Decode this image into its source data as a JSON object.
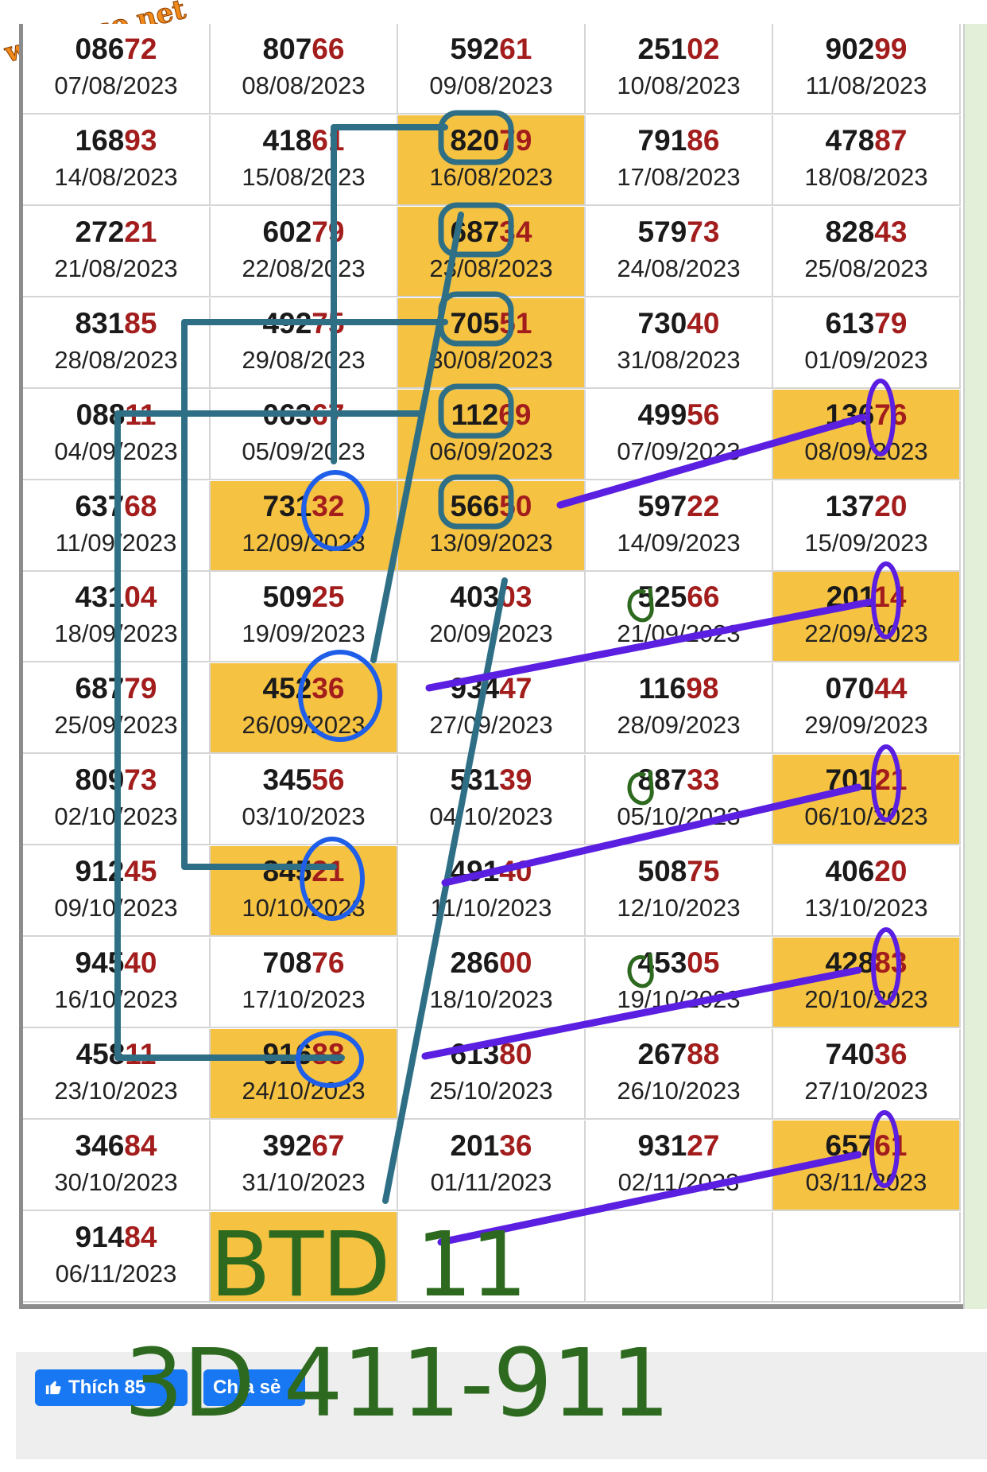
{
  "watermark": "webxoso.net",
  "rows": [
    [
      {
        "p": "086",
        "t": "72",
        "d": "07/08/2023"
      },
      {
        "p": "807",
        "t": "66",
        "d": "08/08/2023"
      },
      {
        "p": "592",
        "t": "61",
        "d": "09/08/2023"
      },
      {
        "p": "251",
        "t": "02",
        "d": "10/08/2023"
      },
      {
        "p": "902",
        "t": "99",
        "d": "11/08/2023"
      }
    ],
    [
      {
        "p": "168",
        "t": "93",
        "d": "14/08/2023"
      },
      {
        "p": "418",
        "t": "61",
        "d": "15/08/2023"
      },
      {
        "p": "820",
        "t": "79",
        "d": "16/08/2023",
        "hl": true
      },
      {
        "p": "791",
        "t": "86",
        "d": "17/08/2023"
      },
      {
        "p": "478",
        "t": "87",
        "d": "18/08/2023"
      }
    ],
    [
      {
        "p": "272",
        "t": "21",
        "d": "21/08/2023"
      },
      {
        "p": "602",
        "t": "79",
        "d": "22/08/2023"
      },
      {
        "p": "687",
        "t": "34",
        "d": "23/08/2023",
        "hl": true
      },
      {
        "p": "579",
        "t": "73",
        "d": "24/08/2023"
      },
      {
        "p": "828",
        "t": "43",
        "d": "25/08/2023"
      }
    ],
    [
      {
        "p": "831",
        "t": "85",
        "d": "28/08/2023"
      },
      {
        "p": "492",
        "t": "75",
        "d": "29/08/2023"
      },
      {
        "p": "705",
        "t": "51",
        "d": "30/08/2023",
        "hl": true
      },
      {
        "p": "730",
        "t": "40",
        "d": "31/08/2023"
      },
      {
        "p": "613",
        "t": "79",
        "d": "01/09/2023"
      }
    ],
    [
      {
        "p": "088",
        "t": "11",
        "d": "04/09/2023"
      },
      {
        "p": "063",
        "t": "67",
        "d": "05/09/2023"
      },
      {
        "p": "112",
        "t": "69",
        "d": "06/09/2023",
        "hl": true
      },
      {
        "p": "499",
        "t": "56",
        "d": "07/09/2023"
      },
      {
        "p": "136",
        "t": "76",
        "d": "08/09/2023",
        "hl": true
      }
    ],
    [
      {
        "p": "637",
        "t": "68",
        "d": "11/09/2023"
      },
      {
        "p": "731",
        "t": "32",
        "d": "12/09/2023",
        "hl": true
      },
      {
        "p": "566",
        "t": "50",
        "d": "13/09/2023",
        "hl": true
      },
      {
        "p": "597",
        "t": "22",
        "d": "14/09/2023"
      },
      {
        "p": "137",
        "t": "20",
        "d": "15/09/2023"
      }
    ],
    [
      {
        "p": "431",
        "t": "04",
        "d": "18/09/2023"
      },
      {
        "p": "509",
        "t": "25",
        "d": "19/09/2023"
      },
      {
        "p": "403",
        "t": "03",
        "d": "20/09/2023"
      },
      {
        "p": "525",
        "t": "66",
        "d": "21/09/2023"
      },
      {
        "p": "201",
        "t": "14",
        "d": "22/09/2023",
        "hl": true
      }
    ],
    [
      {
        "p": "687",
        "t": "79",
        "d": "25/09/2023"
      },
      {
        "p": "452",
        "t": "36",
        "d": "26/09/2023",
        "hl": true
      },
      {
        "p": "934",
        "t": "47",
        "d": "27/09/2023"
      },
      {
        "p": "116",
        "t": "98",
        "d": "28/09/2023"
      },
      {
        "p": "070",
        "t": "44",
        "d": "29/09/2023"
      }
    ],
    [
      {
        "p": "809",
        "t": "73",
        "d": "02/10/2023"
      },
      {
        "p": "345",
        "t": "56",
        "d": "03/10/2023"
      },
      {
        "p": "531",
        "t": "39",
        "d": "04/10/2023"
      },
      {
        "p": "887",
        "t": "33",
        "d": "05/10/2023"
      },
      {
        "p": "701",
        "t": "21",
        "d": "06/10/2023",
        "hl": true
      }
    ],
    [
      {
        "p": "912",
        "t": "45",
        "d": "09/10/2023"
      },
      {
        "p": "845",
        "t": "21",
        "d": "10/10/2023",
        "hl": true
      },
      {
        "p": "491",
        "t": "40",
        "d": "11/10/2023"
      },
      {
        "p": "508",
        "t": "75",
        "d": "12/10/2023"
      },
      {
        "p": "406",
        "t": "20",
        "d": "13/10/2023"
      }
    ],
    [
      {
        "p": "945",
        "t": "40",
        "d": "16/10/2023"
      },
      {
        "p": "708",
        "t": "76",
        "d": "17/10/2023"
      },
      {
        "p": "286",
        "t": "00",
        "d": "18/10/2023"
      },
      {
        "p": "453",
        "t": "05",
        "d": "19/10/2023"
      },
      {
        "p": "428",
        "t": "83",
        "d": "20/10/2023",
        "hl": true
      }
    ],
    [
      {
        "p": "458",
        "t": "11",
        "d": "23/10/2023"
      },
      {
        "p": "916",
        "t": "88",
        "d": "24/10/2023",
        "hl": true
      },
      {
        "p": "613",
        "t": "80",
        "d": "25/10/2023"
      },
      {
        "p": "267",
        "t": "88",
        "d": "26/10/2023"
      },
      {
        "p": "740",
        "t": "36",
        "d": "27/10/2023"
      }
    ],
    [
      {
        "p": "346",
        "t": "84",
        "d": "30/10/2023"
      },
      {
        "p": "392",
        "t": "67",
        "d": "31/10/2023"
      },
      {
        "p": "201",
        "t": "36",
        "d": "01/11/2023"
      },
      {
        "p": "931",
        "t": "27",
        "d": "02/11/2023"
      },
      {
        "p": "657",
        "t": "61",
        "d": "03/11/2023",
        "hl": true
      }
    ],
    [
      {
        "p": "914",
        "t": "84",
        "d": "06/11/2023"
      },
      {
        "p": "",
        "t": "",
        "d": "",
        "hl": true
      },
      {
        "p": "",
        "t": "",
        "d": ""
      },
      {
        "p": "",
        "t": "",
        "d": ""
      },
      {
        "p": "",
        "t": "",
        "d": ""
      }
    ]
  ],
  "annotations": {
    "btd": "BTD  11",
    "combo": "3D 411-911"
  },
  "social": {
    "like_label": "Thích",
    "like_count": "85",
    "share_label": "Chia sẻ"
  },
  "colors": {
    "highlight": "#f5c242",
    "tail_digits": "#a31d1d",
    "teal_lines": "#2f6f86",
    "blue_circles": "#1f5ee8",
    "purple_lines": "#5a1fe0",
    "green_text": "#2d6a1f"
  }
}
